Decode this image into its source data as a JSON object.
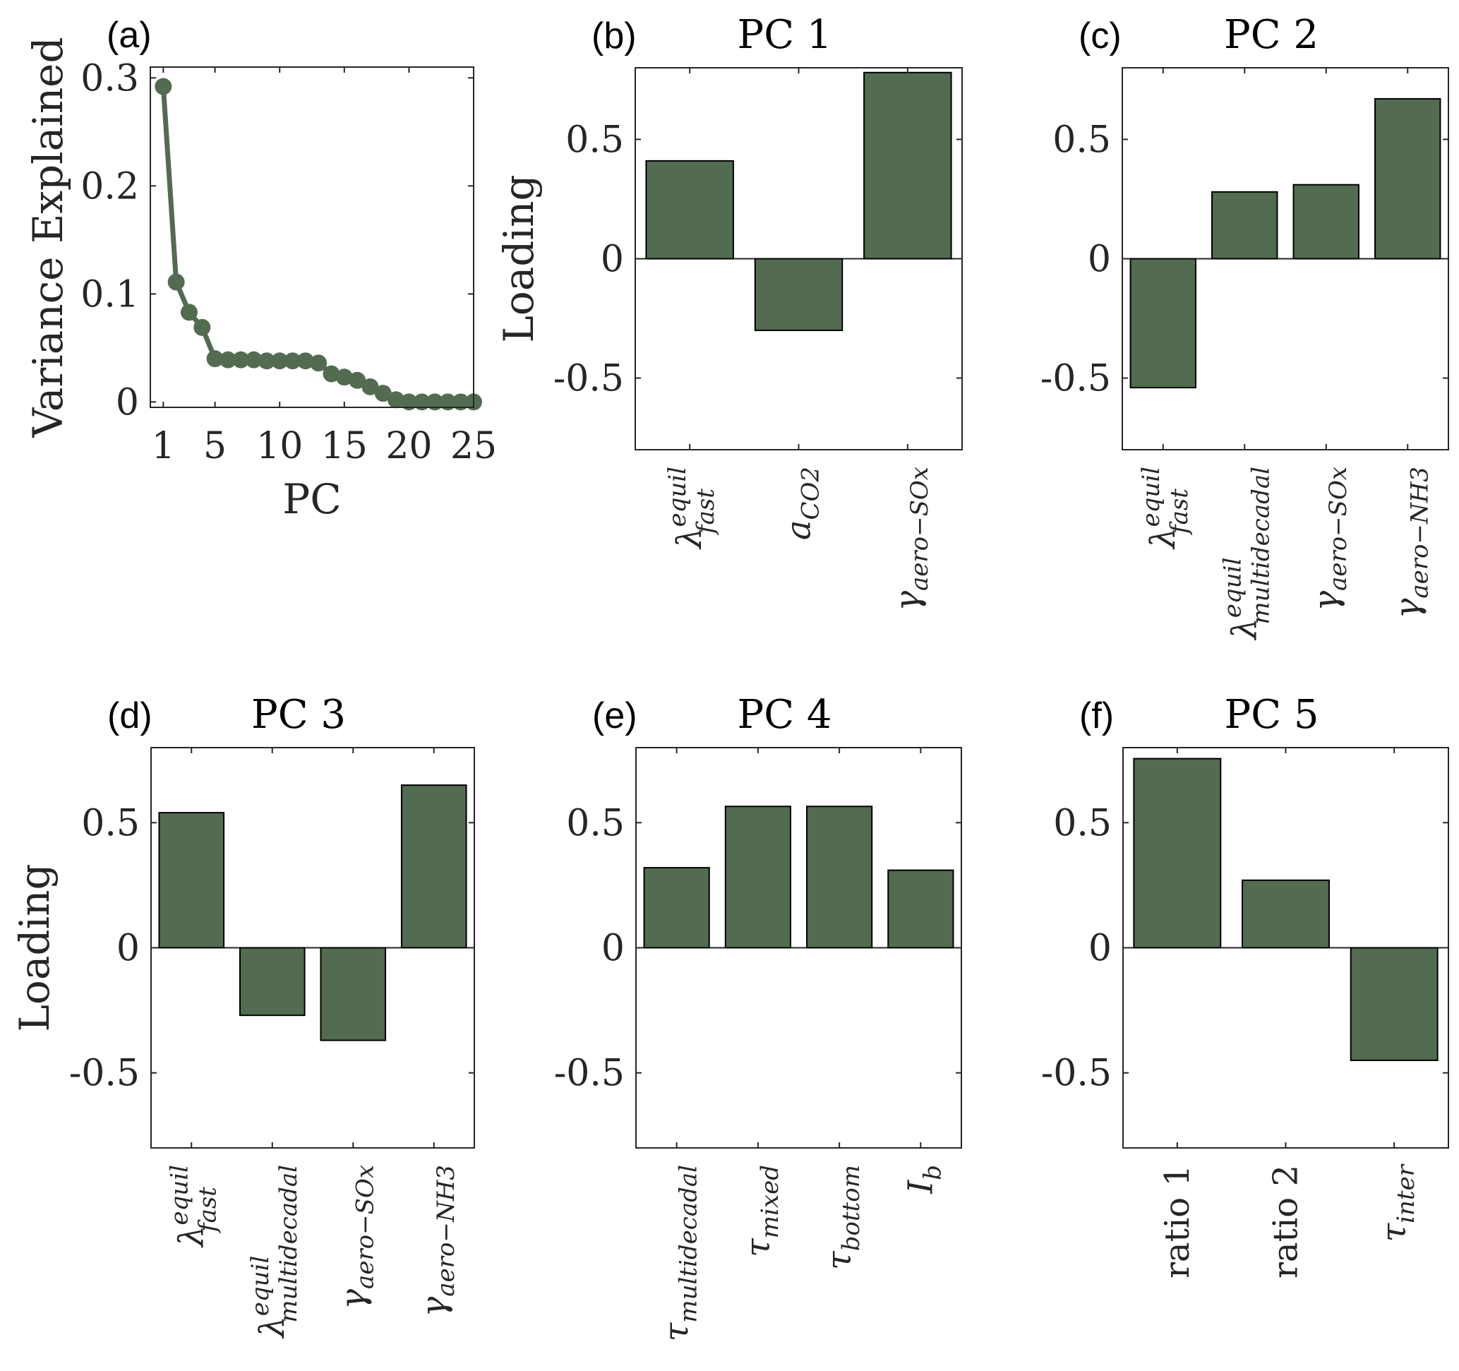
{
  "figure": {
    "bar_color": "#536b50",
    "bar_edge_color": "#000000",
    "line_color": "#536b50",
    "axis_color": "#262626"
  },
  "chart_data": [
    {
      "id": "a",
      "type": "line",
      "panel_tag": "(a)",
      "title": "",
      "xlabel": "PC",
      "ylabel": "Variance Explained",
      "xlim": [
        0,
        25
      ],
      "ylim": [
        -0.005,
        0.31
      ],
      "xticks": [
        1,
        5,
        10,
        15,
        20,
        25
      ],
      "xtick_labels": [
        "1",
        "5",
        "10",
        "15",
        "20",
        "25"
      ],
      "yticks": [
        0,
        0.1,
        0.2,
        0.3
      ],
      "ytick_labels": [
        "0",
        "0.1",
        "0.2",
        "0.3"
      ],
      "x": [
        1,
        2,
        3,
        4,
        5,
        6,
        7,
        8,
        9,
        10,
        11,
        12,
        13,
        14,
        15,
        16,
        17,
        18,
        19,
        20,
        21,
        22,
        23,
        24,
        25
      ],
      "y": [
        0.292,
        0.111,
        0.083,
        0.069,
        0.04,
        0.039,
        0.039,
        0.039,
        0.038,
        0.038,
        0.038,
        0.038,
        0.036,
        0.026,
        0.023,
        0.02,
        0.014,
        0.008,
        0.002,
        0.0,
        0.0,
        0.0,
        0.0,
        0.0,
        0.0
      ],
      "markers": true,
      "grid": false
    },
    {
      "id": "b",
      "type": "bar",
      "panel_tag": "(b)",
      "title": "PC 1",
      "ylabel": "Loading",
      "ylim": [
        -0.8,
        0.8
      ],
      "yticks": [
        -0.5,
        0,
        0.5
      ],
      "ytick_labels": [
        "-0.5",
        "0",
        "0.5"
      ],
      "categories": [
        {
          "base": "λ",
          "sub": "fast",
          "sup": "equil"
        },
        {
          "base": "a",
          "sub": "CO2",
          "sup": ""
        },
        {
          "base": "γ",
          "sub": "aero−SOx",
          "sup": ""
        }
      ],
      "values": [
        0.41,
        -0.3,
        0.78
      ]
    },
    {
      "id": "c",
      "type": "bar",
      "panel_tag": "(c)",
      "title": "PC 2",
      "ylabel": "",
      "ylim": [
        -0.8,
        0.8
      ],
      "yticks": [
        -0.5,
        0,
        0.5
      ],
      "ytick_labels": [
        "-0.5",
        "0",
        "0.5"
      ],
      "categories": [
        {
          "base": "λ",
          "sub": "fast",
          "sup": "equil"
        },
        {
          "base": "λ",
          "sub": "multidecadal",
          "sup": "equil"
        },
        {
          "base": "γ",
          "sub": "aero−SOx",
          "sup": ""
        },
        {
          "base": "γ",
          "sub": "aero−NH3",
          "sup": ""
        }
      ],
      "values": [
        -0.54,
        0.28,
        0.31,
        0.67
      ]
    },
    {
      "id": "d",
      "type": "bar",
      "panel_tag": "(d)",
      "title": "PC 3",
      "ylabel": "Loading",
      "ylim": [
        -0.8,
        0.8
      ],
      "yticks": [
        -0.5,
        0,
        0.5
      ],
      "ytick_labels": [
        "-0.5",
        "0",
        "0.5"
      ],
      "categories": [
        {
          "base": "λ",
          "sub": "fast",
          "sup": "equil"
        },
        {
          "base": "λ",
          "sub": "multidecadal",
          "sup": "equil"
        },
        {
          "base": "γ",
          "sub": "aero−SOx",
          "sup": ""
        },
        {
          "base": "γ",
          "sub": "aero−NH3",
          "sup": ""
        }
      ],
      "values": [
        0.54,
        -0.27,
        -0.37,
        0.65
      ]
    },
    {
      "id": "e",
      "type": "bar",
      "panel_tag": "(e)",
      "title": "PC 4",
      "ylabel": "",
      "ylim": [
        -0.8,
        0.8
      ],
      "yticks": [
        -0.5,
        0,
        0.5
      ],
      "ytick_labels": [
        "-0.5",
        "0",
        "0.5"
      ],
      "categories": [
        {
          "base": "τ",
          "sub": "multidecadal",
          "sup": ""
        },
        {
          "base": "τ",
          "sub": "mixed",
          "sup": ""
        },
        {
          "base": "τ",
          "sub": "bottom",
          "sup": ""
        },
        {
          "base": "I",
          "sub": "b",
          "sup": ""
        }
      ],
      "values": [
        0.32,
        0.565,
        0.565,
        0.31
      ]
    },
    {
      "id": "f",
      "type": "bar",
      "panel_tag": "(f)",
      "title": "PC 5",
      "ylabel": "",
      "ylim": [
        -0.8,
        0.8
      ],
      "yticks": [
        -0.5,
        0,
        0.5
      ],
      "ytick_labels": [
        "-0.5",
        "0",
        "0.5"
      ],
      "categories": [
        {
          "base": "ratio 1",
          "sub": "",
          "sup": "",
          "roman": true
        },
        {
          "base": "ratio 2",
          "sub": "",
          "sup": "",
          "roman": true
        },
        {
          "base": "τ",
          "sub": "inter",
          "sup": ""
        }
      ],
      "values": [
        0.756,
        0.27,
        -0.45
      ]
    }
  ]
}
